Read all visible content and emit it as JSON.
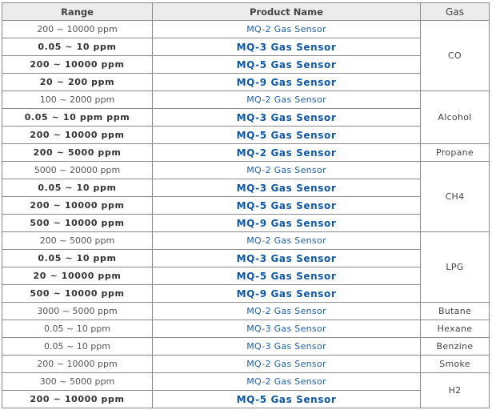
{
  "table": {
    "headers": {
      "range": "Range",
      "product": "Product Name",
      "gas": "Gas"
    },
    "rows": [
      {
        "range": "200 ~ 10000 ppm",
        "product": "MQ-2 Gas Sensor",
        "bold": false
      },
      {
        "range": "0.05 ~ 10 ppm",
        "product": "MQ-3 Gas Sensor",
        "bold": true
      },
      {
        "range": "200 ~ 10000 ppm",
        "product": "MQ-5 Gas Sensor",
        "bold": true
      },
      {
        "range": "20 ~ 200 ppm",
        "product": "MQ-9 Gas Sensor",
        "bold": true
      },
      {
        "range": "100 ~ 2000 ppm",
        "product": "MQ-2 Gas Sensor",
        "bold": false
      },
      {
        "range": "0.05 ~ 10 ppm ppm",
        "product": "MQ-3 Gas Sensor",
        "bold": true
      },
      {
        "range": "200 ~ 10000 ppm",
        "product": "MQ-5 Gas Sensor",
        "bold": true
      },
      {
        "range": "200 ~ 5000 ppm",
        "product": "MQ-2 Gas Sensor",
        "bold": true
      },
      {
        "range": "5000 ~ 20000 ppm",
        "product": "MQ-2 Gas Sensor",
        "bold": false
      },
      {
        "range": "0.05 ~ 10 ppm",
        "product": "MQ-3 Gas Sensor",
        "bold": true
      },
      {
        "range": "200 ~ 10000 ppm",
        "product": "MQ-5 Gas Sensor",
        "bold": true
      },
      {
        "range": "500 ~ 10000 ppm",
        "product": "MQ-9 Gas Sensor",
        "bold": true
      },
      {
        "range": "200 ~ 5000 ppm",
        "product": "MQ-2 Gas Sensor",
        "bold": false
      },
      {
        "range": "0.05 ~ 10 ppm",
        "product": "MQ-3 Gas Sensor",
        "bold": true
      },
      {
        "range": "20 ~ 10000 ppm",
        "product": "MQ-5 Gas Sensor",
        "bold": true
      },
      {
        "range": "500 ~ 10000 ppm",
        "product": "MQ-9 Gas Sensor",
        "bold": true
      },
      {
        "range": "3000 ~ 5000 ppm",
        "product": "MQ-2 Gas Sensor",
        "bold": false
      },
      {
        "range": "0.05 ~ 10 ppm",
        "product": "MQ-3 Gas Sensor",
        "bold": false
      },
      {
        "range": "0.05 ~ 10 ppm",
        "product": "MQ-3 Gas Sensor",
        "bold": false
      },
      {
        "range": "200 ~ 10000 ppm",
        "product": "MQ-2 Gas Sensor",
        "bold": false
      },
      {
        "range": "300 ~ 5000 ppm",
        "product": "MQ-2 Gas Sensor",
        "bold": false
      },
      {
        "range": "200 ~ 10000 ppm",
        "product": "MQ-5 Gas Sensor",
        "bold": true
      }
    ],
    "gas_groups": [
      {
        "name": "CO",
        "rowspan": 4
      },
      {
        "name": "Alcohol",
        "rowspan": 3
      },
      {
        "name": "Propane",
        "rowspan": 1
      },
      {
        "name": "CH4",
        "rowspan": 4
      },
      {
        "name": "LPG",
        "rowspan": 4
      },
      {
        "name": "Butane",
        "rowspan": 1
      },
      {
        "name": "Hexane",
        "rowspan": 1
      },
      {
        "name": "Benzine",
        "rowspan": 1
      },
      {
        "name": "Smoke",
        "rowspan": 1
      },
      {
        "name": "H2",
        "rowspan": 2
      }
    ]
  }
}
